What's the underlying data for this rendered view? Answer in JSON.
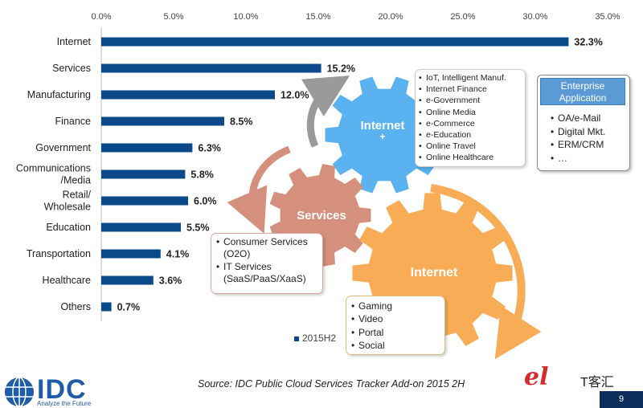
{
  "chart_data": {
    "type": "bar",
    "orientation": "horizontal",
    "categories": [
      "Internet",
      "Services",
      "Manufacturing",
      "Finance",
      "Government",
      "Communications /Media",
      "Retail/ Wholesale",
      "Education",
      "Transportation",
      "Healthcare",
      "Others"
    ],
    "category_lines": [
      [
        "Internet"
      ],
      [
        "Services"
      ],
      [
        "Manufacturing"
      ],
      [
        "Finance"
      ],
      [
        "Government"
      ],
      [
        "Communications",
        "/Media"
      ],
      [
        "Retail/",
        "Wholesale"
      ],
      [
        "Education"
      ],
      [
        "Transportation"
      ],
      [
        "Healthcare"
      ],
      [
        "Others"
      ]
    ],
    "series": [
      {
        "name": "2015H2",
        "values": [
          32.3,
          15.2,
          12.0,
          8.5,
          6.3,
          5.8,
          6.0,
          5.5,
          4.1,
          3.6,
          0.7
        ]
      }
    ],
    "data_labels": [
      "32.3%",
      "15.2%",
      "12.0%",
      "8.5%",
      "6.3%",
      "5.8%",
      "6.0%",
      "5.5%",
      "4.1%",
      "3.6%",
      "0.7%"
    ],
    "xlim": [
      0,
      35
    ],
    "x_ticks": [
      0,
      5,
      10,
      15,
      20,
      25,
      30,
      35
    ],
    "x_tick_labels": [
      "0.0%",
      "5.0%",
      "10.0%",
      "15.0%",
      "20.0%",
      "25.0%",
      "30.0%",
      "35.0%"
    ],
    "axis_position": "top",
    "legend": "bottom",
    "grid": false,
    "bar_color": "#0b4a8a"
  },
  "legend_label": "2015H2",
  "gears": {
    "internet_plus": {
      "label": "Internet",
      "sub": "+",
      "color": "#5ab3f0"
    },
    "services": {
      "label": "Services",
      "color": "#d4907c"
    },
    "internet": {
      "label": "Internet",
      "color": "#f7ac55"
    }
  },
  "callouts": {
    "iot": [
      "IoT, Intelligent Manuf.",
      "Internet Finance",
      "e-Government",
      "Online Media",
      "e-Commerce",
      "e-Education",
      "Online Travel",
      "Online Healthcare"
    ],
    "services": [
      "Consumer Services (O2O)",
      "IT Services (SaaS/PaaS/XaaS)"
    ],
    "games": [
      "Gaming",
      "Video",
      "Portal",
      "Social"
    ],
    "enterprise": {
      "title": "Enterprise Application",
      "items": [
        "OA/e-Mail",
        "Digital Mkt.",
        "ERM/CRM",
        "…"
      ]
    }
  },
  "source_note": "Source: IDC Public Cloud Services Tracker Add-on 2015 2H",
  "page_number": "9",
  "logos": {
    "idc_name": "IDC",
    "idc_tagline": "Analyze the Future",
    "right_brand": "T客汇",
    "right_mark": "el"
  }
}
